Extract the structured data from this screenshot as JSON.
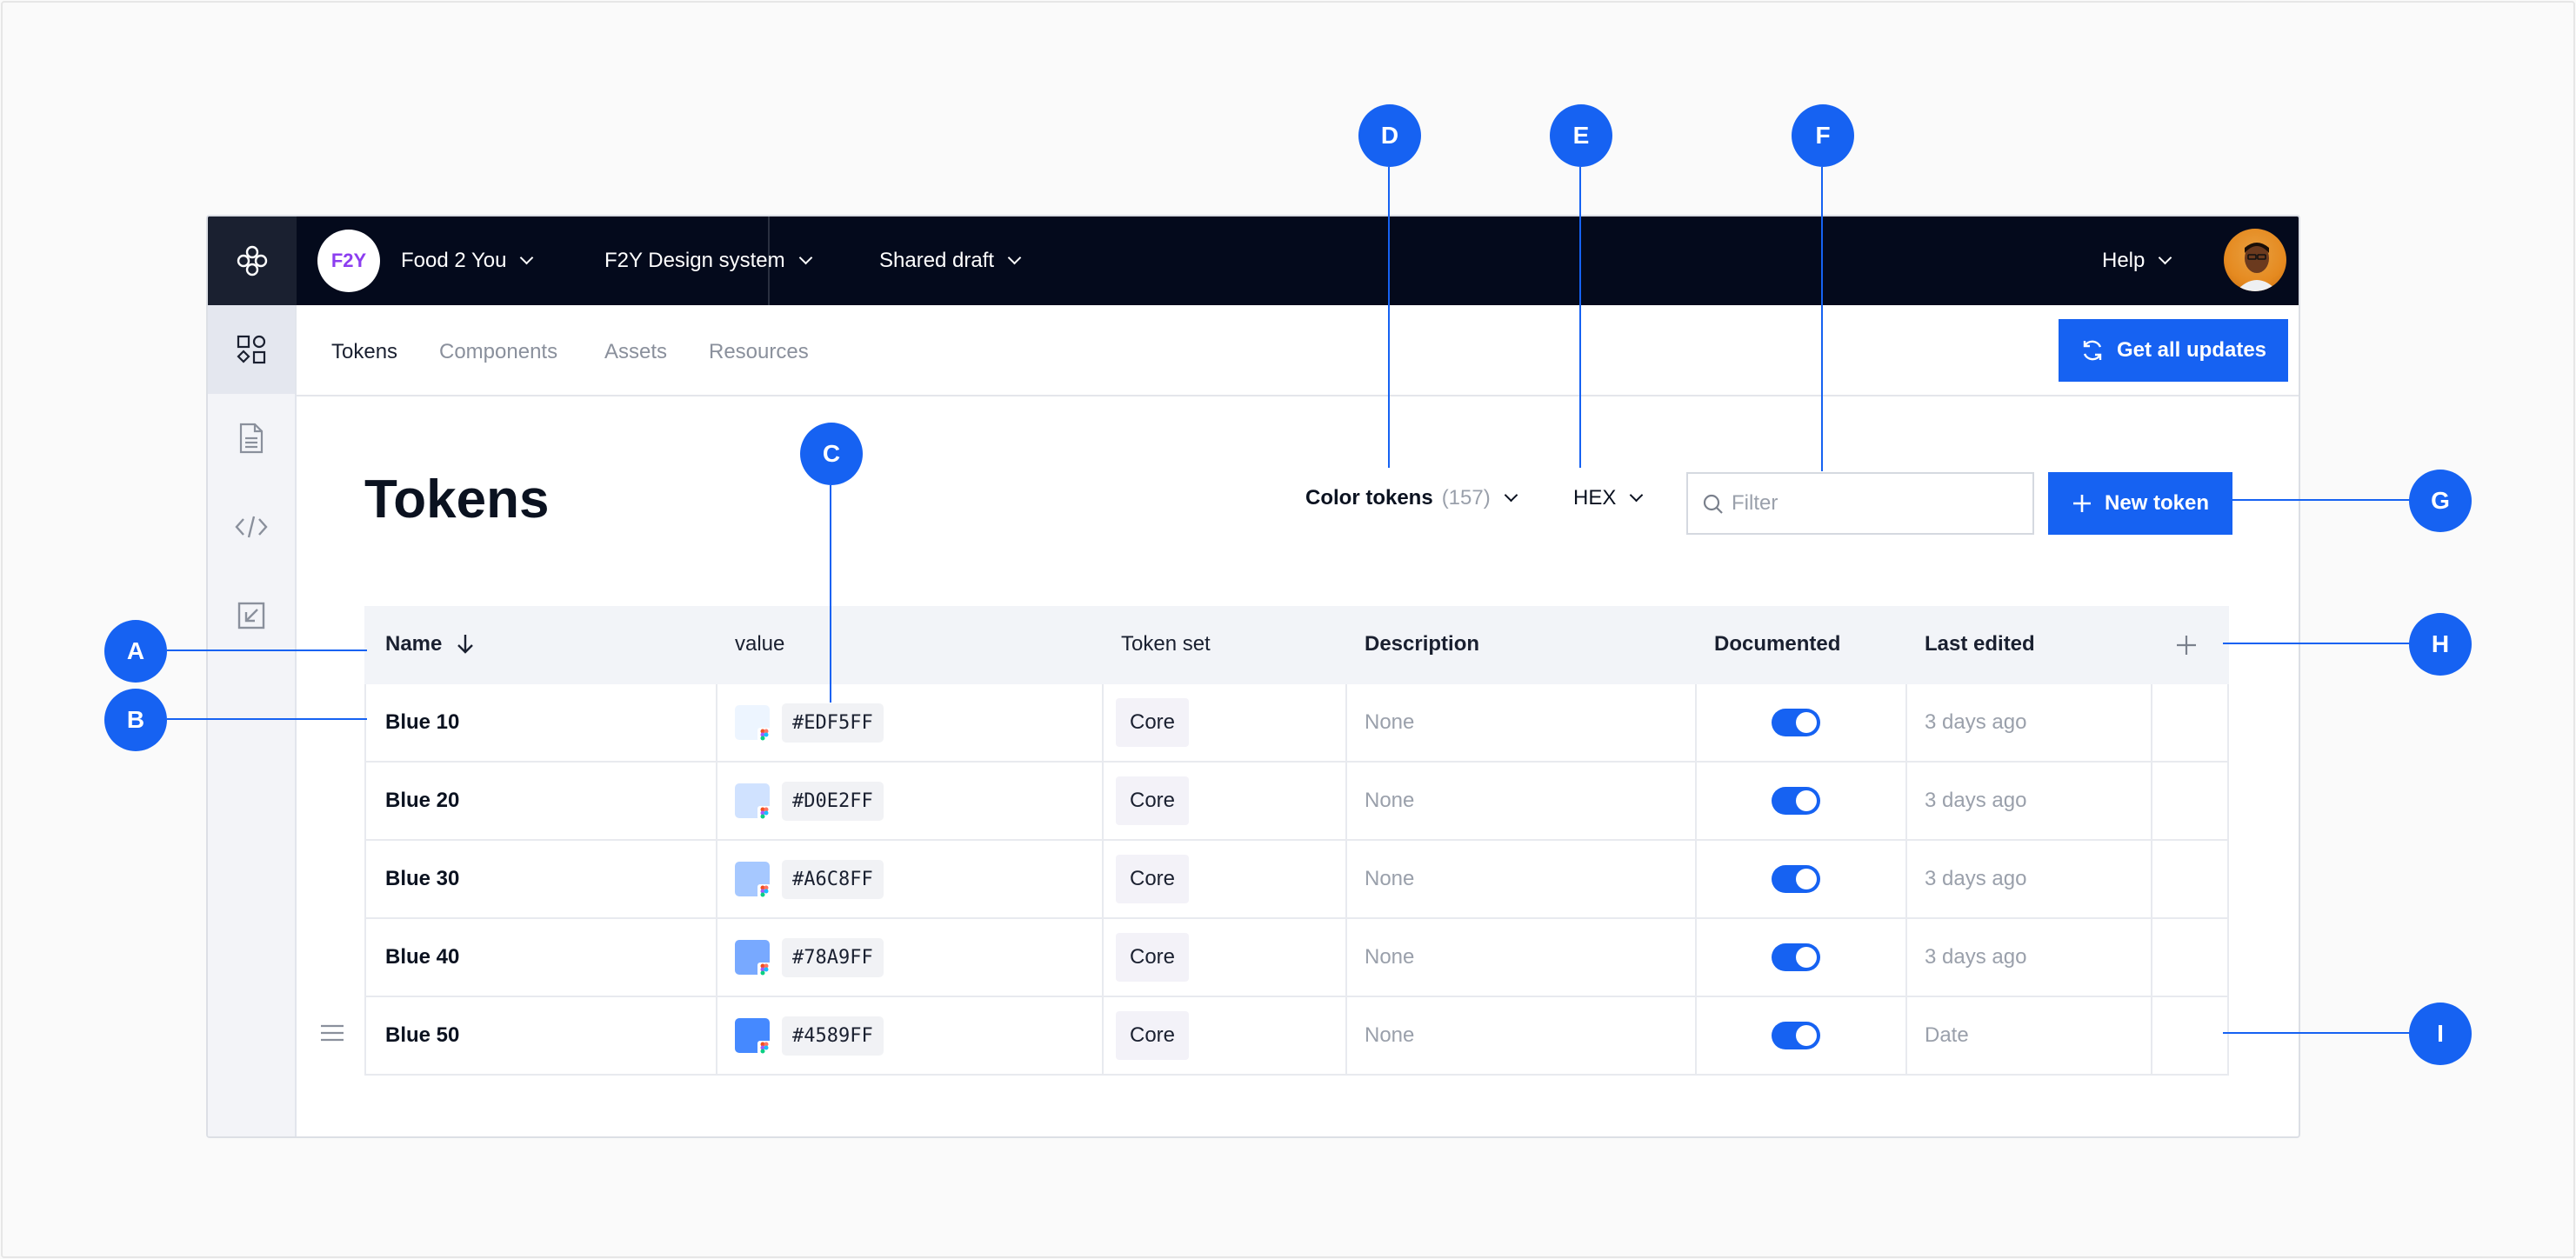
{
  "topbar": {
    "org_badge": "F2Y",
    "org_name": "Food 2 You",
    "project": "F2Y Design system",
    "branch": "Shared draft",
    "help": "Help"
  },
  "tabs": [
    "Tokens",
    "Components",
    "Assets",
    "Resources"
  ],
  "actions": {
    "get_updates": "Get all updates",
    "new_token": "New token"
  },
  "page": {
    "title": "Tokens",
    "type_selector": "Color tokens",
    "type_count": "(157)",
    "format": "HEX",
    "filter_placeholder": "Filter"
  },
  "table": {
    "columns": [
      "Name",
      "value",
      "Token set",
      "Description",
      "Documented",
      "Last edited"
    ],
    "rows": [
      {
        "name": "Blue 10",
        "hex": "#EDF5FF",
        "color": "#EDF5FF",
        "set": "Core",
        "description": "None",
        "documented": true,
        "edited": "3 days ago"
      },
      {
        "name": "Blue 20",
        "hex": "#D0E2FF",
        "color": "#D0E2FF",
        "set": "Core",
        "description": "None",
        "documented": true,
        "edited": "3 days ago"
      },
      {
        "name": "Blue 30",
        "hex": "#A6C8FF",
        "color": "#A6C8FF",
        "set": "Core",
        "description": "None",
        "documented": true,
        "edited": "3 days ago"
      },
      {
        "name": "Blue 40",
        "hex": "#78A9FF",
        "color": "#78A9FF",
        "set": "Core",
        "description": "None",
        "documented": true,
        "edited": "3 days ago"
      },
      {
        "name": "Blue 50",
        "hex": "#4589FF",
        "color": "#4589FF",
        "set": "Core",
        "description": "None",
        "documented": true,
        "edited": "Date"
      }
    ]
  },
  "callouts": [
    "A",
    "B",
    "C",
    "D",
    "E",
    "F",
    "G",
    "H",
    "I"
  ],
  "colors": {
    "accent": "#1662f2",
    "topbar": "#040a1c"
  }
}
